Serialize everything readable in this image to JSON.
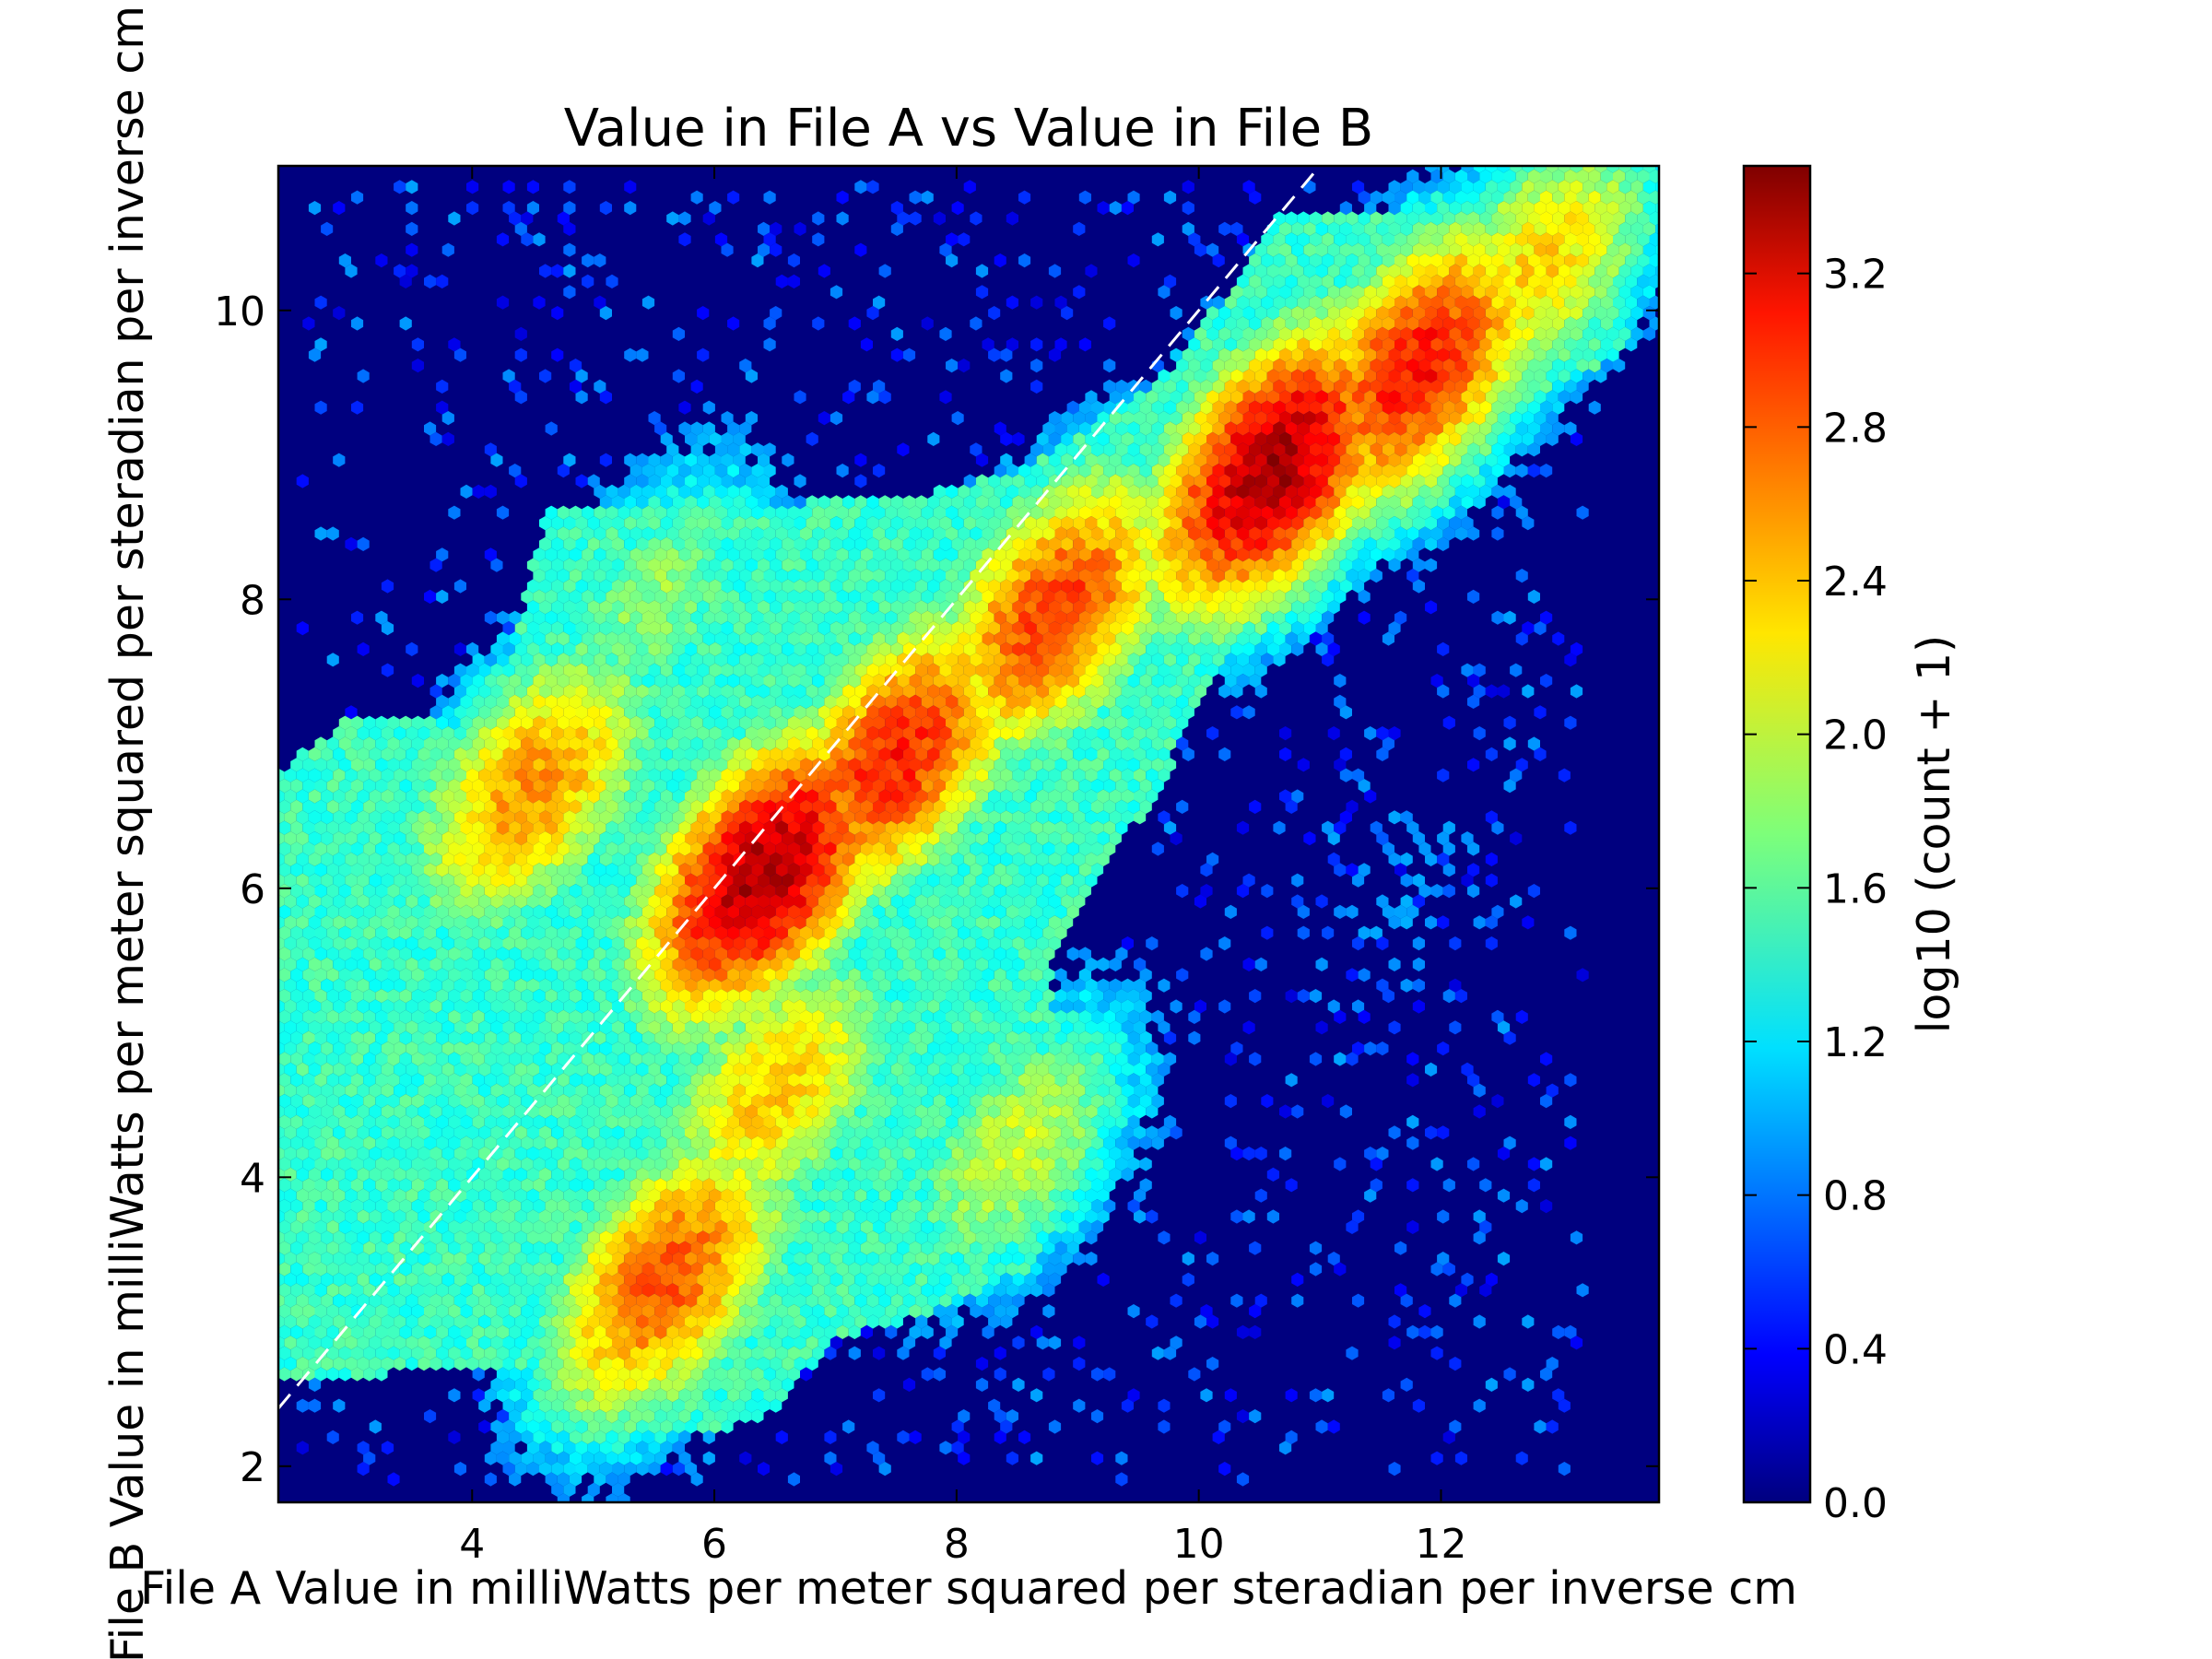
{
  "chart_data": {
    "type": "heatmap",
    "subtype": "hexbin",
    "title": "Value in File A vs Value in File B",
    "xlabel": "File A Value in milliWatts per meter squared per steradian per inverse cm",
    "ylabel": "File B Value in milliWatts per meter squared per steradian per inverse cm",
    "xlim": [
      2.4,
      13.8
    ],
    "ylim": [
      1.75,
      11.0
    ],
    "xticks": [
      4,
      6,
      8,
      10,
      12
    ],
    "yticks": [
      2,
      4,
      6,
      8,
      10
    ],
    "xtick_labels": [
      "4",
      "6",
      "8",
      "10",
      "12"
    ],
    "ytick_labels": [
      "2",
      "4",
      "6",
      "8",
      "10"
    ],
    "colorbar": {
      "label": "log10 (count + 1)",
      "range": [
        0.0,
        3.48
      ],
      "ticks": [
        0.0,
        0.4,
        0.8,
        1.2,
        1.6,
        2.0,
        2.4,
        2.8,
        3.2
      ],
      "tick_labels": [
        "0.0",
        "0.4",
        "0.8",
        "1.2",
        "1.6",
        "2.0",
        "2.4",
        "2.8",
        "3.2"
      ],
      "colormap": "jet"
    },
    "reference_line": {
      "style": "dashed",
      "color": "#ffffff",
      "slope": 1,
      "intercept": 0
    },
    "background_color": "#00007f",
    "density_components": [
      {
        "center": [
          6.4,
          6.1
        ],
        "value": 3.35
      },
      {
        "center": [
          10.6,
          8.9
        ],
        "value": 3.35
      },
      {
        "center": [
          7.5,
          6.9
        ],
        "value": 2.95
      },
      {
        "center": [
          8.8,
          7.9
        ],
        "value": 2.85
      },
      {
        "center": [
          11.8,
          9.6
        ],
        "value": 3.0
      },
      {
        "center": [
          5.6,
          3.3
        ],
        "value": 2.75
      },
      {
        "center": [
          4.5,
          6.7
        ],
        "value": 2.55
      },
      {
        "center": [
          6.5,
          4.6
        ],
        "value": 2.35
      },
      {
        "center": [
          8.5,
          4.2
        ],
        "value": 2.0
      },
      {
        "center": [
          5.5,
          8.0
        ],
        "value": 1.8
      },
      {
        "center": [
          11.8,
          6.0
        ],
        "value": 0.9
      },
      {
        "center": [
          12.8,
          10.3
        ],
        "value": 2.3
      }
    ],
    "grid": false
  }
}
